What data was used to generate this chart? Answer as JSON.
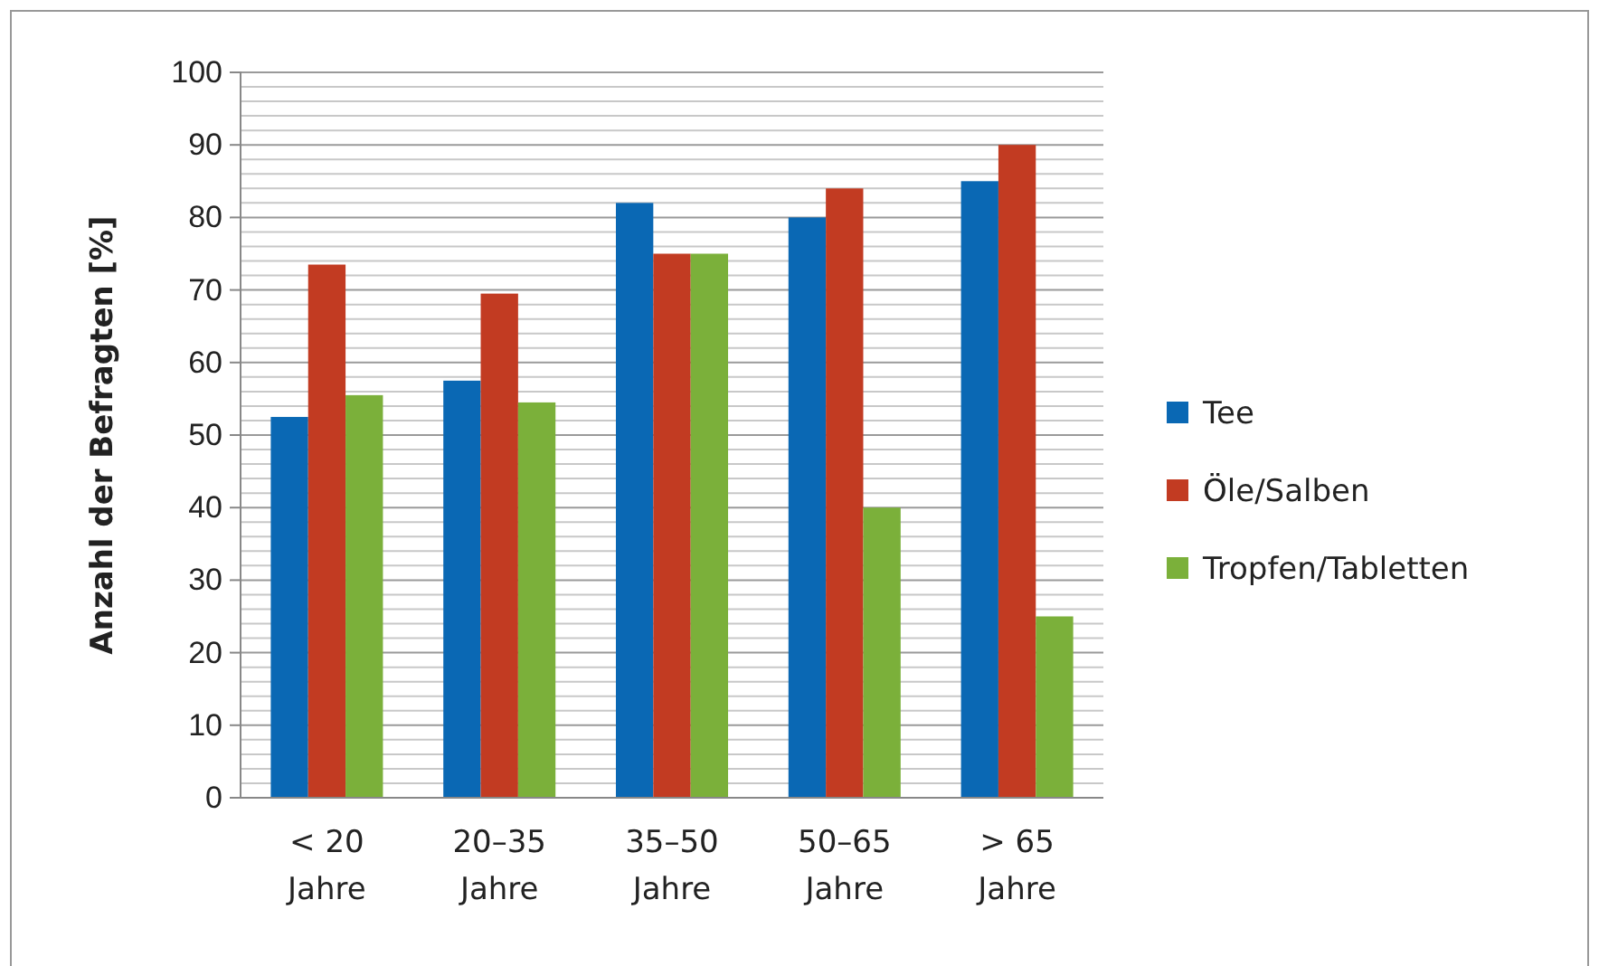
{
  "chart_data": {
    "type": "bar",
    "ylabel": "Anzahl der Befragten [%]",
    "categories": [
      "< 20 Jahre",
      "20–35 Jahre",
      "35–50 Jahre",
      "50–65 Jahre",
      "> 65 Jahre"
    ],
    "series": [
      {
        "name": "Tee",
        "color": "#0a68b4",
        "values": [
          52.5,
          57.5,
          82,
          80,
          85
        ]
      },
      {
        "name": "Öle/Salben",
        "color": "#c23b22",
        "values": [
          73.5,
          69.5,
          75,
          84,
          90
        ]
      },
      {
        "name": "Tropfen/Tabletten",
        "color": "#7bb03a",
        "values": [
          55.5,
          54.5,
          75,
          40,
          25
        ]
      }
    ],
    "ylim": [
      0,
      100
    ],
    "yticks": [
      0,
      {
        "value": 2,
        "label": null
      },
      {
        "value": 4,
        "label": null
      },
      {
        "value": 6,
        "label": null
      },
      {
        "value": 8,
        "label": null
      },
      10,
      {
        "value": 12,
        "label": null
      },
      {
        "value": 14,
        "label": null
      },
      {
        "value": 16,
        "label": null
      },
      {
        "value": 18,
        "label": null
      },
      20,
      {
        "value": 22,
        "label": null
      },
      {
        "value": 24,
        "label": null
      },
      {
        "value": 26,
        "label": null
      },
      {
        "value": 28,
        "label": null
      },
      30,
      {
        "value": 32,
        "label": null
      },
      {
        "value": 34,
        "label": null
      },
      {
        "value": 36,
        "label": null
      },
      {
        "value": 38,
        "label": null
      },
      40,
      {
        "value": 42,
        "label": null
      },
      {
        "value": 44,
        "label": null
      },
      {
        "value": 46,
        "label": null
      },
      {
        "value": 48,
        "label": null
      },
      50,
      {
        "value": 52,
        "label": null
      },
      {
        "value": 54,
        "label": null
      },
      {
        "value": 56,
        "label": null
      },
      {
        "value": 58,
        "label": null
      },
      60,
      {
        "value": 62,
        "label": null
      },
      {
        "value": 64,
        "label": null
      },
      {
        "value": 66,
        "label": null
      },
      {
        "value": 68,
        "label": null
      },
      70,
      {
        "value": 72,
        "label": null
      },
      {
        "value": 74,
        "label": null
      },
      {
        "value": 76,
        "label": null
      },
      {
        "value": 78,
        "label": null
      },
      80,
      {
        "value": 82,
        "label": null
      },
      {
        "value": 84,
        "label": null
      },
      {
        "value": 86,
        "label": null
      },
      {
        "value": 88,
        "label": null
      },
      90,
      {
        "value": 92,
        "label": null
      },
      {
        "value": 94,
        "label": null
      },
      {
        "value": 96,
        "label": null
      },
      {
        "value": 98,
        "label": null
      },
      100
    ],
    "grid": true,
    "legend": "right"
  }
}
